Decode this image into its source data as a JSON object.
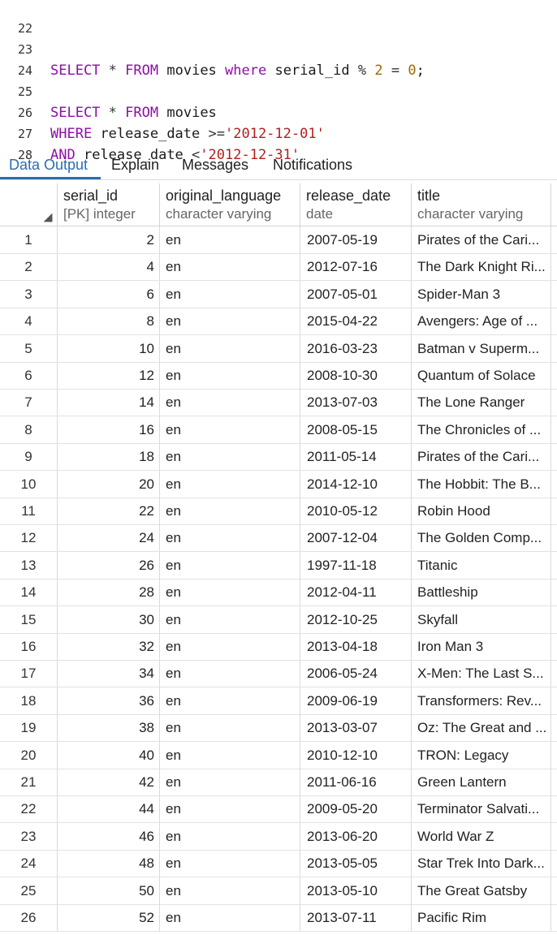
{
  "editor": {
    "lines": [
      {
        "n": "22",
        "text": ""
      },
      {
        "n": "23",
        "text": ""
      },
      {
        "n": "24",
        "text": ""
      },
      {
        "n": "25",
        "text": ""
      },
      {
        "n": "26",
        "text": ""
      },
      {
        "n": "27",
        "text": ""
      },
      {
        "n": "28",
        "text": ""
      }
    ],
    "q1": {
      "select": "SELECT",
      "star": "*",
      "from": "FROM",
      "table": "movies",
      "where": "where",
      "col": "serial_id",
      "mod": "%",
      "two": "2",
      "eq": "=",
      "zero": "0",
      "semi": ";"
    },
    "q2": {
      "select": "SELECT",
      "star": "*",
      "from": "FROM",
      "table": "movies",
      "where": "WHERE",
      "col1": "release_date",
      "op1": ">=",
      "val1": "'2012-12-01'",
      "and": "AND",
      "col2": "release_date",
      "op2": "<",
      "val2": "'2012-12-31'"
    }
  },
  "tabs": [
    "Data Output",
    "Explain",
    "Messages",
    "Notifications"
  ],
  "columns": [
    {
      "name": "serial_id",
      "type": "[PK] integer"
    },
    {
      "name": "original_language",
      "type": "character varying"
    },
    {
      "name": "release_date",
      "type": "date"
    },
    {
      "name": "title",
      "type": "character varying"
    }
  ],
  "rows": [
    {
      "n": "1",
      "id": "2",
      "lang": "en",
      "date": "2007-05-19",
      "title": "Pirates of the Cari..."
    },
    {
      "n": "2",
      "id": "4",
      "lang": "en",
      "date": "2012-07-16",
      "title": "The Dark Knight Ri..."
    },
    {
      "n": "3",
      "id": "6",
      "lang": "en",
      "date": "2007-05-01",
      "title": "Spider-Man 3"
    },
    {
      "n": "4",
      "id": "8",
      "lang": "en",
      "date": "2015-04-22",
      "title": "Avengers: Age of ..."
    },
    {
      "n": "5",
      "id": "10",
      "lang": "en",
      "date": "2016-03-23",
      "title": "Batman v Superm..."
    },
    {
      "n": "6",
      "id": "12",
      "lang": "en",
      "date": "2008-10-30",
      "title": "Quantum of Solace"
    },
    {
      "n": "7",
      "id": "14",
      "lang": "en",
      "date": "2013-07-03",
      "title": "The Lone Ranger"
    },
    {
      "n": "8",
      "id": "16",
      "lang": "en",
      "date": "2008-05-15",
      "title": "The Chronicles of ..."
    },
    {
      "n": "9",
      "id": "18",
      "lang": "en",
      "date": "2011-05-14",
      "title": "Pirates of the Cari..."
    },
    {
      "n": "10",
      "id": "20",
      "lang": "en",
      "date": "2014-12-10",
      "title": "The Hobbit: The B..."
    },
    {
      "n": "11",
      "id": "22",
      "lang": "en",
      "date": "2010-05-12",
      "title": "Robin Hood"
    },
    {
      "n": "12",
      "id": "24",
      "lang": "en",
      "date": "2007-12-04",
      "title": "The Golden Comp..."
    },
    {
      "n": "13",
      "id": "26",
      "lang": "en",
      "date": "1997-11-18",
      "title": "Titanic"
    },
    {
      "n": "14",
      "id": "28",
      "lang": "en",
      "date": "2012-04-11",
      "title": "Battleship"
    },
    {
      "n": "15",
      "id": "30",
      "lang": "en",
      "date": "2012-10-25",
      "title": "Skyfall"
    },
    {
      "n": "16",
      "id": "32",
      "lang": "en",
      "date": "2013-04-18",
      "title": "Iron Man 3"
    },
    {
      "n": "17",
      "id": "34",
      "lang": "en",
      "date": "2006-05-24",
      "title": "X-Men: The Last S..."
    },
    {
      "n": "18",
      "id": "36",
      "lang": "en",
      "date": "2009-06-19",
      "title": "Transformers: Rev..."
    },
    {
      "n": "19",
      "id": "38",
      "lang": "en",
      "date": "2013-03-07",
      "title": "Oz: The Great and ..."
    },
    {
      "n": "20",
      "id": "40",
      "lang": "en",
      "date": "2010-12-10",
      "title": "TRON: Legacy"
    },
    {
      "n": "21",
      "id": "42",
      "lang": "en",
      "date": "2011-06-16",
      "title": "Green Lantern"
    },
    {
      "n": "22",
      "id": "44",
      "lang": "en",
      "date": "2009-05-20",
      "title": "Terminator Salvati..."
    },
    {
      "n": "23",
      "id": "46",
      "lang": "en",
      "date": "2013-06-20",
      "title": "World War Z"
    },
    {
      "n": "24",
      "id": "48",
      "lang": "en",
      "date": "2013-05-05",
      "title": "Star Trek Into Dark..."
    },
    {
      "n": "25",
      "id": "50",
      "lang": "en",
      "date": "2013-05-10",
      "title": "The Great Gatsby"
    },
    {
      "n": "26",
      "id": "52",
      "lang": "en",
      "date": "2013-07-11",
      "title": "Pacific Rim"
    }
  ]
}
